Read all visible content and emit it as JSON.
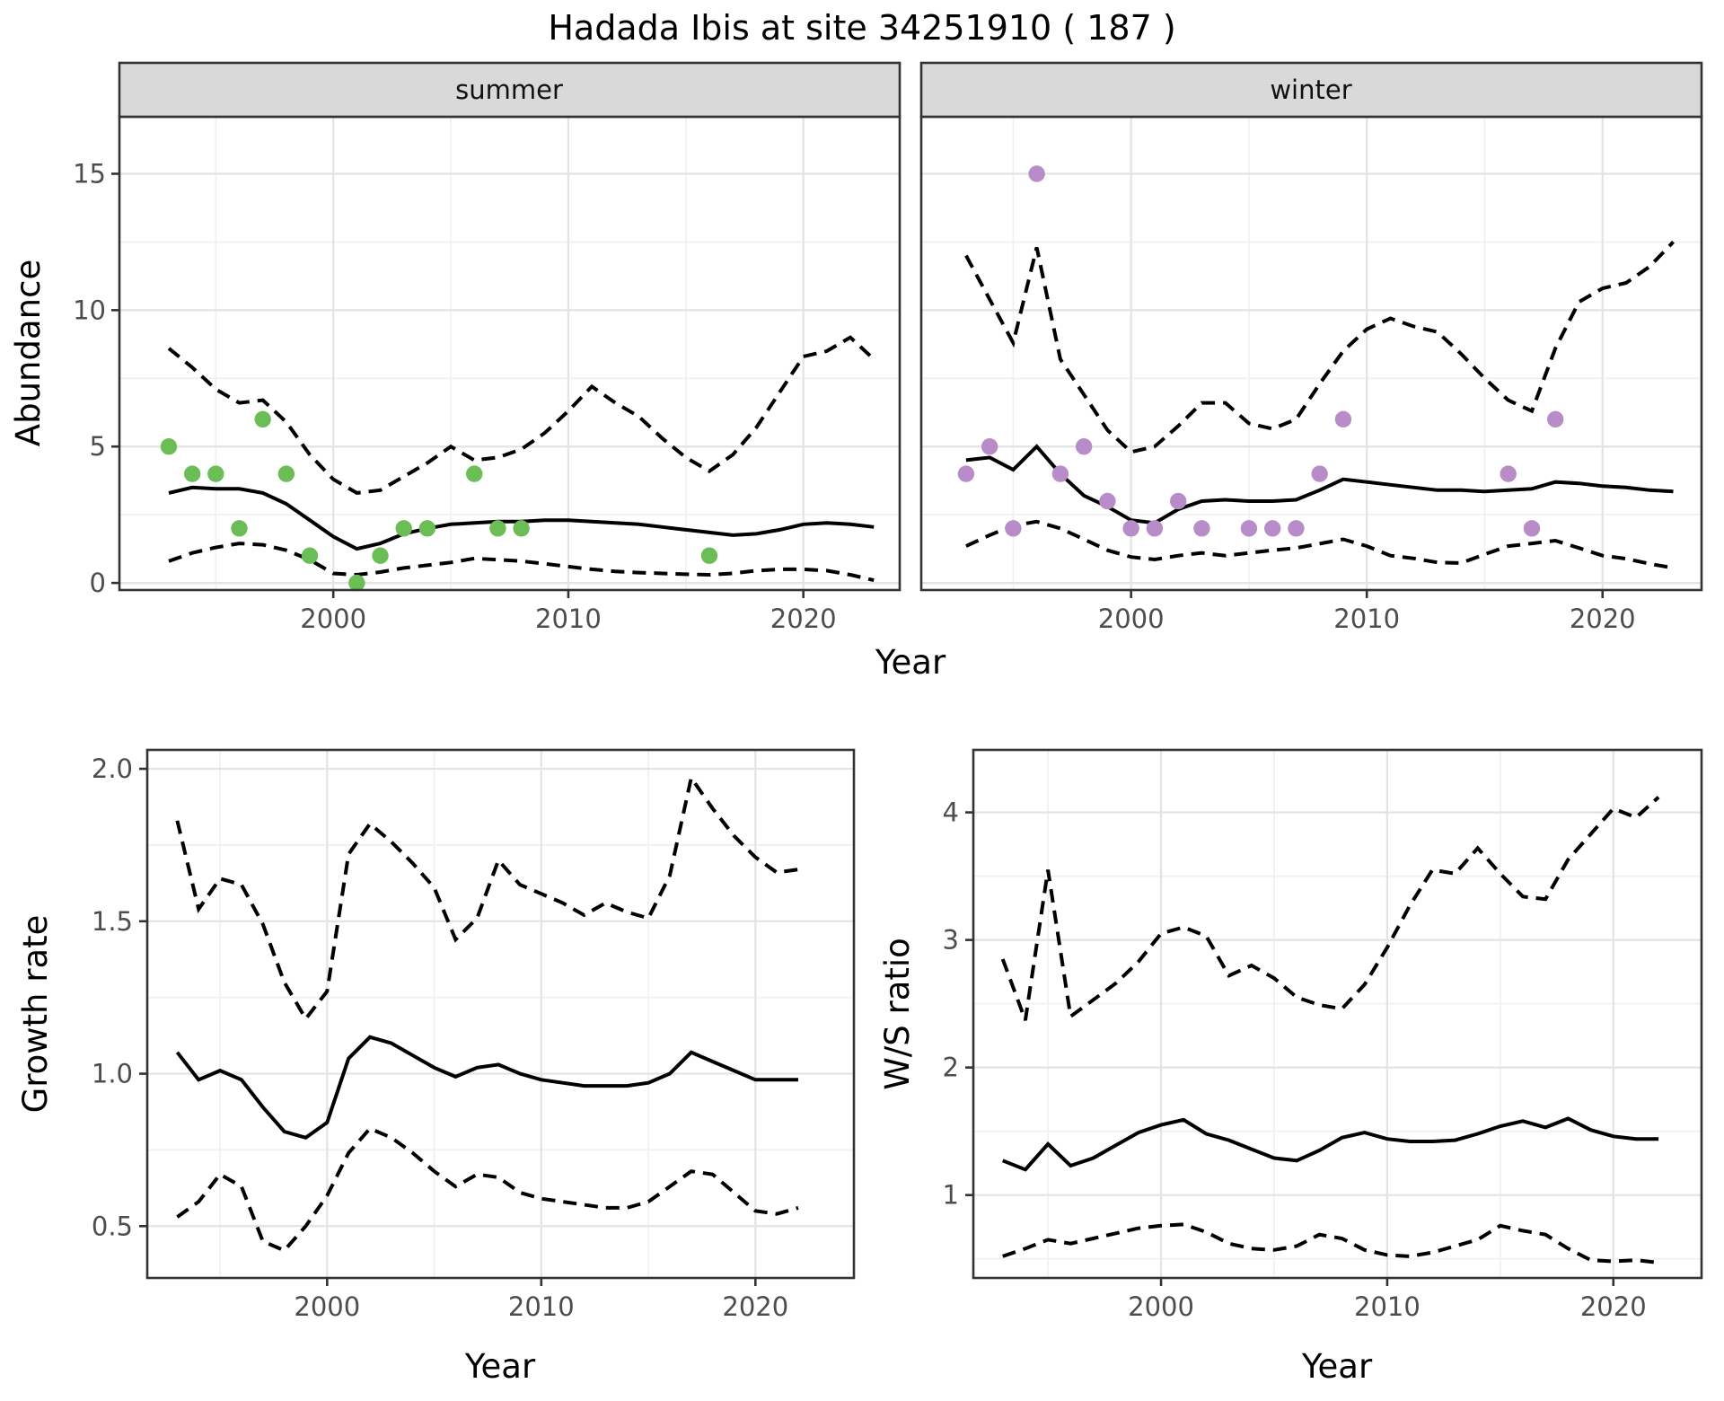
{
  "title": "Hadada Ibis at site 34251910 ( 187 )",
  "axes": {
    "abundance_label": "Abundance",
    "year_label": "Year",
    "growth_label": "Growth rate",
    "ws_label": "W/S ratio"
  },
  "facets": {
    "summer": "summer",
    "winter": "winter"
  },
  "colors": {
    "summer_point": "#6abe55",
    "winter_point": "#b78cc8",
    "line": "#000000",
    "strip_fill": "#d9d9d9",
    "panel_border": "#333333",
    "grid_major": "#e3e3e3",
    "grid_minor": "#f1f1f1",
    "tick_text": "#4d4d4d",
    "background": "#ffffff"
  },
  "chart_data": [
    {
      "id": "abundance-summer",
      "type": "line+scatter",
      "facet": "summer",
      "ylabel": "Abundance",
      "xlabel": "Year",
      "x": [
        1993,
        1994,
        1995,
        1996,
        1997,
        1998,
        1999,
        2000,
        2001,
        2002,
        2003,
        2004,
        2005,
        2006,
        2007,
        2008,
        2009,
        2010,
        2011,
        2012,
        2013,
        2014,
        2015,
        2016,
        2017,
        2018,
        2019,
        2020,
        2021,
        2022,
        2023
      ],
      "series": [
        {
          "name": "mean",
          "style": "solid",
          "values": [
            3.3,
            3.5,
            3.45,
            3.45,
            3.3,
            2.9,
            2.3,
            1.7,
            1.25,
            1.45,
            1.8,
            2.0,
            2.15,
            2.2,
            2.25,
            2.25,
            2.3,
            2.3,
            2.25,
            2.2,
            2.15,
            2.05,
            1.95,
            1.85,
            1.75,
            1.8,
            1.95,
            2.15,
            2.2,
            2.15,
            2.05
          ]
        },
        {
          "name": "upper95",
          "style": "dashed",
          "values": [
            8.6,
            7.9,
            7.1,
            6.6,
            6.7,
            5.9,
            4.7,
            3.8,
            3.3,
            3.4,
            3.9,
            4.4,
            5.0,
            4.5,
            4.6,
            4.9,
            5.5,
            6.3,
            7.2,
            6.6,
            6.1,
            5.3,
            4.6,
            4.1,
            4.7,
            5.7,
            7.0,
            8.3,
            8.5,
            9.0,
            8.2
          ]
        },
        {
          "name": "lower95",
          "style": "dashed",
          "values": [
            0.8,
            1.1,
            1.3,
            1.45,
            1.4,
            1.2,
            0.85,
            0.35,
            0.3,
            0.4,
            0.55,
            0.65,
            0.75,
            0.9,
            0.85,
            0.8,
            0.7,
            0.6,
            0.5,
            0.42,
            0.38,
            0.35,
            0.32,
            0.3,
            0.35,
            0.45,
            0.5,
            0.5,
            0.45,
            0.3,
            0.1
          ]
        }
      ],
      "points": {
        "x": [
          1993,
          1994,
          1995,
          1996,
          1997,
          1998,
          1999,
          2001,
          2002,
          2003,
          2004,
          2006,
          2007,
          2008,
          2016
        ],
        "y": [
          5,
          4,
          4,
          2,
          6,
          4,
          1,
          0,
          1,
          2,
          2,
          4,
          2,
          2,
          1
        ],
        "color": "#6abe55"
      },
      "xticks": {
        "values": [
          2000,
          2010,
          2020
        ],
        "labels": [
          "2000",
          "2010",
          "2020"
        ]
      },
      "xminor": [
        1995,
        2005,
        2015
      ],
      "yticks": {
        "values": [
          0,
          5,
          10,
          15
        ],
        "labels": [
          "0",
          "5",
          "10",
          "15"
        ]
      },
      "yminor": [
        2.5,
        7.5,
        12.5
      ],
      "xlim": [
        1990.9,
        2024.1
      ],
      "ylim": [
        -0.26,
        17.09
      ]
    },
    {
      "id": "abundance-winter",
      "type": "line+scatter",
      "facet": "winter",
      "ylabel": "Abundance",
      "xlabel": "Year",
      "x": [
        1993,
        1994,
        1995,
        1996,
        1997,
        1998,
        1999,
        2000,
        2001,
        2002,
        2003,
        2004,
        2005,
        2006,
        2007,
        2008,
        2009,
        2010,
        2011,
        2012,
        2013,
        2014,
        2015,
        2016,
        2017,
        2018,
        2019,
        2020,
        2021,
        2022,
        2023
      ],
      "series": [
        {
          "name": "mean",
          "style": "solid",
          "values": [
            4.5,
            4.6,
            4.15,
            5.0,
            4.0,
            3.2,
            2.8,
            2.3,
            2.2,
            2.7,
            3.0,
            3.05,
            3.0,
            3.0,
            3.05,
            3.4,
            3.8,
            3.7,
            3.6,
            3.5,
            3.4,
            3.4,
            3.35,
            3.4,
            3.45,
            3.7,
            3.65,
            3.55,
            3.5,
            3.4,
            3.35
          ]
        },
        {
          "name": "upper95",
          "style": "dashed",
          "values": [
            12.0,
            10.4,
            8.8,
            12.3,
            8.2,
            6.9,
            5.6,
            4.8,
            5.0,
            5.75,
            6.6,
            6.6,
            5.85,
            5.65,
            6.0,
            7.3,
            8.5,
            9.3,
            9.7,
            9.4,
            9.2,
            8.4,
            7.5,
            6.7,
            6.3,
            8.6,
            10.3,
            10.8,
            11.0,
            11.6,
            12.5
          ]
        },
        {
          "name": "lower95",
          "style": "dashed",
          "values": [
            1.35,
            1.75,
            2.1,
            2.25,
            2.0,
            1.6,
            1.2,
            0.95,
            0.86,
            1.0,
            1.1,
            1.0,
            1.1,
            1.2,
            1.28,
            1.44,
            1.6,
            1.35,
            1.0,
            0.9,
            0.75,
            0.73,
            1.05,
            1.35,
            1.45,
            1.55,
            1.28,
            1.0,
            0.89,
            0.7,
            0.55
          ]
        }
      ],
      "points": {
        "x": [
          1993,
          1994,
          1995,
          1996,
          1997,
          1998,
          1999,
          2000,
          2001,
          2002,
          2003,
          2005,
          2006,
          2007,
          2008,
          2009,
          2016,
          2017,
          2018
        ],
        "y": [
          4,
          5,
          2,
          15,
          4,
          5,
          3,
          2,
          2,
          3,
          2,
          2,
          2,
          2,
          4,
          6,
          4,
          2,
          6
        ],
        "color": "#b78cc8"
      },
      "xticks": {
        "values": [
          2000,
          2010,
          2020
        ],
        "labels": [
          "2000",
          "2010",
          "2020"
        ]
      },
      "xminor": [
        1995,
        2005,
        2015
      ],
      "yticks": {
        "values": [
          0,
          5,
          10,
          15
        ],
        "labels": [
          "0",
          "5",
          "10",
          "15"
        ]
      },
      "yminor": [
        2.5,
        7.5,
        12.5
      ],
      "xlim": [
        1991.1,
        2024.2
      ],
      "ylim": [
        -0.26,
        17.09
      ]
    },
    {
      "id": "growth-rate",
      "type": "line",
      "facet": null,
      "ylabel": "Growth rate",
      "xlabel": "Year",
      "x": [
        1993,
        1994,
        1995,
        1996,
        1997,
        1998,
        1999,
        2000,
        2001,
        2002,
        2003,
        2004,
        2005,
        2006,
        2007,
        2008,
        2009,
        2010,
        2011,
        2012,
        2013,
        2014,
        2015,
        2016,
        2017,
        2018,
        2019,
        2020,
        2021,
        2022
      ],
      "series": [
        {
          "name": "mean",
          "style": "solid",
          "values": [
            1.07,
            0.98,
            1.01,
            0.98,
            0.89,
            0.81,
            0.79,
            0.84,
            1.05,
            1.12,
            1.1,
            1.06,
            1.02,
            0.99,
            1.02,
            1.03,
            1.0,
            0.98,
            0.97,
            0.96,
            0.96,
            0.96,
            0.97,
            1.0,
            1.07,
            1.04,
            1.01,
            0.98,
            0.98,
            0.98
          ]
        },
        {
          "name": "upper95",
          "style": "dashed",
          "values": [
            1.83,
            1.54,
            1.64,
            1.62,
            1.49,
            1.3,
            1.18,
            1.27,
            1.72,
            1.82,
            1.76,
            1.69,
            1.61,
            1.44,
            1.51,
            1.7,
            1.62,
            1.59,
            1.56,
            1.52,
            1.56,
            1.53,
            1.51,
            1.65,
            1.97,
            1.87,
            1.78,
            1.71,
            1.66,
            1.67
          ]
        },
        {
          "name": "lower95",
          "style": "dashed",
          "values": [
            0.53,
            0.58,
            0.67,
            0.63,
            0.45,
            0.42,
            0.5,
            0.6,
            0.74,
            0.82,
            0.79,
            0.74,
            0.68,
            0.63,
            0.67,
            0.66,
            0.61,
            0.59,
            0.58,
            0.57,
            0.56,
            0.56,
            0.58,
            0.63,
            0.68,
            0.67,
            0.61,
            0.55,
            0.54,
            0.56
          ]
        }
      ],
      "points": null,
      "xticks": {
        "values": [
          2000,
          2010,
          2020
        ],
        "labels": [
          "2000",
          "2010",
          "2020"
        ]
      },
      "xminor": [
        1995,
        2005,
        2015
      ],
      "yticks": {
        "values": [
          0.5,
          1.0,
          1.5,
          2.0
        ],
        "labels": [
          "0.5",
          "1.0",
          "1.5",
          "2.0"
        ]
      },
      "yminor": [
        0.75,
        1.25,
        1.75
      ],
      "xlim": [
        1991.6,
        2024.6
      ],
      "ylim": [
        0.33,
        2.062
      ]
    },
    {
      "id": "ws-ratio",
      "type": "line",
      "facet": null,
      "ylabel": "W/S ratio",
      "xlabel": "Year",
      "x": [
        1993,
        1994,
        1995,
        1996,
        1997,
        1998,
        1999,
        2000,
        2001,
        2002,
        2003,
        2004,
        2005,
        2006,
        2007,
        2008,
        2009,
        2010,
        2011,
        2012,
        2013,
        2014,
        2015,
        2016,
        2017,
        2018,
        2019,
        2020,
        2021,
        2022
      ],
      "series": [
        {
          "name": "mean",
          "style": "solid",
          "values": [
            1.27,
            1.2,
            1.4,
            1.23,
            1.29,
            1.39,
            1.49,
            1.55,
            1.59,
            1.48,
            1.43,
            1.36,
            1.29,
            1.27,
            1.35,
            1.45,
            1.49,
            1.44,
            1.42,
            1.42,
            1.43,
            1.48,
            1.54,
            1.58,
            1.53,
            1.6,
            1.51,
            1.46,
            1.44,
            1.44
          ]
        },
        {
          "name": "upper95",
          "style": "dashed",
          "values": [
            2.85,
            2.37,
            3.55,
            2.4,
            2.53,
            2.66,
            2.83,
            3.05,
            3.1,
            3.03,
            2.72,
            2.8,
            2.7,
            2.55,
            2.49,
            2.46,
            2.65,
            2.94,
            3.27,
            3.55,
            3.52,
            3.72,
            3.52,
            3.34,
            3.32,
            3.63,
            3.83,
            4.03,
            3.96,
            4.12
          ]
        },
        {
          "name": "lower95",
          "style": "dashed",
          "values": [
            0.52,
            0.58,
            0.65,
            0.62,
            0.66,
            0.7,
            0.74,
            0.76,
            0.77,
            0.71,
            0.62,
            0.58,
            0.57,
            0.6,
            0.69,
            0.66,
            0.57,
            0.53,
            0.52,
            0.55,
            0.6,
            0.65,
            0.76,
            0.72,
            0.69,
            0.58,
            0.49,
            0.48,
            0.49,
            0.47
          ]
        }
      ],
      "points": null,
      "xticks": {
        "values": [
          2000,
          2010,
          2020
        ],
        "labels": [
          "2000",
          "2010",
          "2020"
        ]
      },
      "xminor": [
        1995,
        2005,
        2015
      ],
      "yticks": {
        "values": [
          1,
          2,
          3,
          4
        ],
        "labels": [
          "1",
          "2",
          "3",
          "4"
        ]
      },
      "yminor": [
        0.5,
        1.5,
        2.5,
        3.5
      ],
      "xlim": [
        1991.7,
        2023.9
      ],
      "ylim": [
        0.35,
        4.49
      ]
    }
  ]
}
